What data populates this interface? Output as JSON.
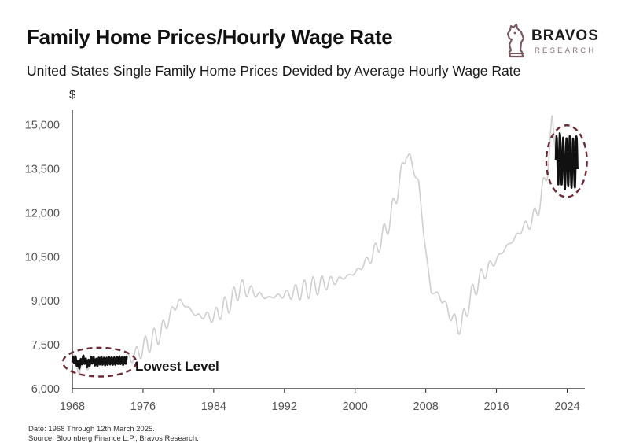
{
  "title": "Family Home Prices/Hourly Wage Rate",
  "subtitle": "United States Single Family Home Prices Devided by Average Hourly Wage Rate",
  "logo": {
    "name": "BRAVOS",
    "sub": "RESEARCH",
    "icon": "knight-chess-icon",
    "color": "#7a5860"
  },
  "footer": {
    "date": "Date: 1968 Through 12th March 2025.",
    "source": "Source: Bloomberg Finance L.P., Bravos Research."
  },
  "colors": {
    "line": "#cfcfcf",
    "highlight": "#111111",
    "circle": "#6e2b35",
    "axis": "#222222",
    "tick_text": "#555555"
  },
  "chart_data": {
    "type": "line",
    "ylabel": "$",
    "xlabel": "",
    "grid": false,
    "xlim": [
      1968,
      2026
    ],
    "ylim": [
      6000,
      15500
    ],
    "x_ticks": [
      1968,
      1976,
      1984,
      1992,
      2000,
      2008,
      2016,
      2024
    ],
    "x_tick_labels": [
      "1968",
      "1976",
      "1984",
      "1992",
      "2000",
      "2008",
      "2016",
      "2024"
    ],
    "y_ticks": [
      6000,
      7500,
      9000,
      10500,
      12000,
      13500,
      15000
    ],
    "y_tick_labels": [
      "6,000",
      "7,500",
      "9,000",
      "10,500",
      "12,000",
      "13,500",
      "15,000"
    ],
    "anchors": [
      [
        1968.0,
        6800
      ],
      [
        1970.0,
        6900
      ],
      [
        1972.0,
        6950
      ],
      [
        1974.0,
        7050
      ],
      [
        1975.0,
        7100
      ],
      [
        1976.0,
        7400
      ],
      [
        1978.0,
        7900
      ],
      [
        1980.0,
        9000
      ],
      [
        1981.0,
        8800
      ],
      [
        1982.0,
        8500
      ],
      [
        1984.0,
        8450
      ],
      [
        1986.0,
        9000
      ],
      [
        1987.0,
        9450
      ],
      [
        1988.0,
        9350
      ],
      [
        1990.0,
        9100
      ],
      [
        1992.0,
        9200
      ],
      [
        1994.0,
        9350
      ],
      [
        1996.0,
        9550
      ],
      [
        1998.0,
        9700
      ],
      [
        2000.0,
        9950
      ],
      [
        2001.0,
        10250
      ],
      [
        2002.0,
        10550
      ],
      [
        2003.0,
        11100
      ],
      [
        2004.0,
        11800
      ],
      [
        2005.0,
        13000
      ],
      [
        2005.8,
        14100
      ],
      [
        2006.5,
        13600
      ],
      [
        2007.2,
        13000
      ],
      [
        2007.8,
        11200
      ],
      [
        2008.6,
        9300
      ],
      [
        2009.5,
        9200
      ],
      [
        2010.3,
        8800
      ],
      [
        2011.2,
        8300
      ],
      [
        2012.0,
        8100
      ],
      [
        2012.8,
        8900
      ],
      [
        2014.0,
        9700
      ],
      [
        2015.0,
        10100
      ],
      [
        2016.0,
        10400
      ],
      [
        2017.0,
        10800
      ],
      [
        2018.0,
        11100
      ],
      [
        2019.0,
        11500
      ],
      [
        2020.0,
        11700
      ],
      [
        2021.0,
        12400
      ],
      [
        2021.8,
        13600
      ],
      [
        2022.3,
        15000
      ],
      [
        2022.8,
        14100
      ],
      [
        2023.5,
        13700
      ],
      [
        2024.5,
        13600
      ],
      [
        2025.2,
        13800
      ]
    ],
    "wiggle_amplitude": 350,
    "wiggle_period_years": 1.0,
    "highlights": [
      {
        "range": [
          1968,
          1974.2
        ],
        "label": "Lowest Level"
      },
      {
        "range": [
          2022.7,
          2025.2
        ],
        "label": ""
      }
    ]
  }
}
